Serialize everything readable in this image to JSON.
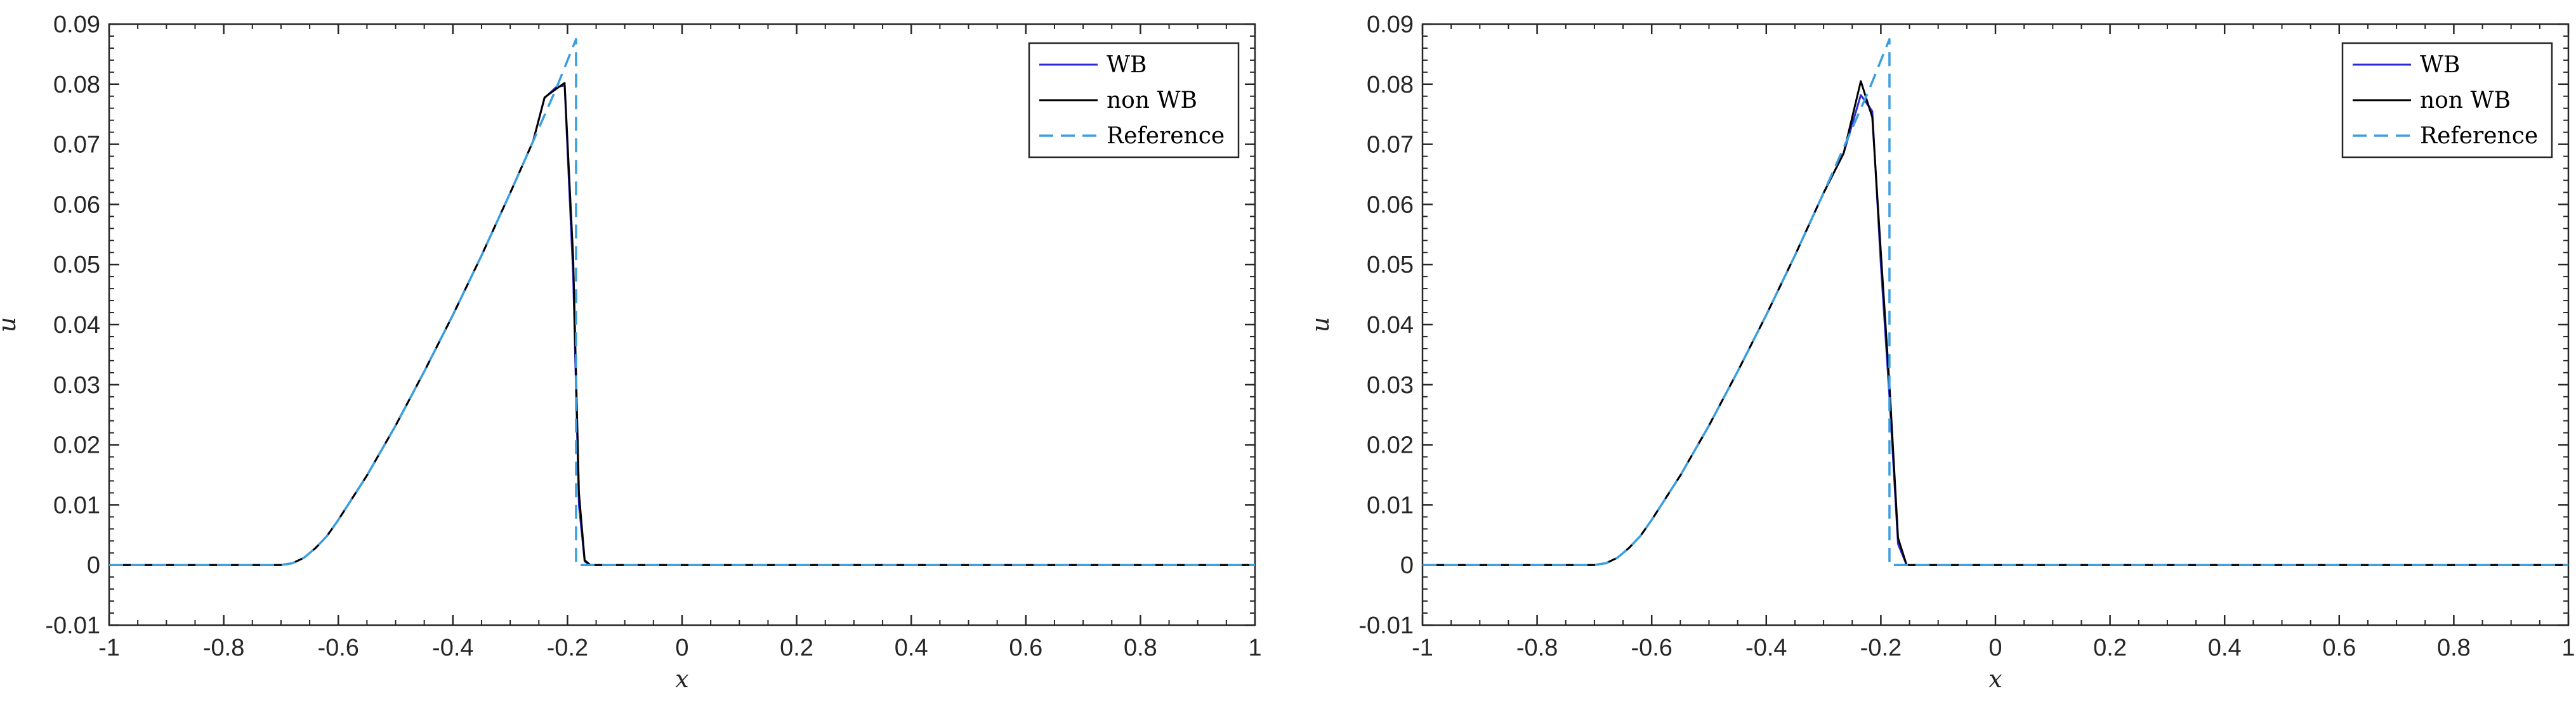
{
  "colors": {
    "wb": "#2b2bd6",
    "non_wb": "#000000",
    "reference": "#3a9ee0",
    "axis": "#262626"
  },
  "chart_data": [
    {
      "type": "line",
      "title": "",
      "xlabel": "x",
      "ylabel": "u",
      "xlim": [
        -1,
        1
      ],
      "ylim": [
        -0.01,
        0.09
      ],
      "xticks": [
        -1,
        -0.8,
        -0.6,
        -0.4,
        -0.2,
        0,
        0.2,
        0.4,
        0.6,
        0.8,
        1
      ],
      "xtick_labels": [
        "-1",
        "-0.8",
        "-0.6",
        "-0.4",
        "-0.2",
        "0",
        "0.2",
        "0.4",
        "0.6",
        "0.8",
        "1"
      ],
      "yticks": [
        -0.01,
        0,
        0.01,
        0.02,
        0.03,
        0.04,
        0.05,
        0.06,
        0.07,
        0.08,
        0.09
      ],
      "ytick_labels": [
        "-0.01",
        "0",
        "0.01",
        "0.02",
        "0.03",
        "0.04",
        "0.05",
        "0.06",
        "0.07",
        "0.08",
        "0.09"
      ],
      "grid": false,
      "legend_position": "top-right",
      "series": [
        {
          "name": "WB",
          "style": "solid",
          "x": [
            -1,
            -0.7,
            -0.68,
            -0.66,
            -0.64,
            -0.62,
            -0.6,
            -0.55,
            -0.5,
            -0.45,
            -0.4,
            -0.35,
            -0.3,
            -0.26,
            -0.24,
            -0.22,
            -0.205,
            -0.19,
            -0.18,
            -0.17,
            -0.16,
            1
          ],
          "y": [
            0,
            0,
            0.0003,
            0.0012,
            0.0028,
            0.0048,
            0.0075,
            0.0149,
            0.0232,
            0.0322,
            0.0416,
            0.0515,
            0.0619,
            0.0705,
            0.0777,
            0.0795,
            0.0798,
            0.048,
            0.01,
            0.0006,
            0,
            0
          ]
        },
        {
          "name": "non WB",
          "style": "solid",
          "x": [
            -1,
            -0.7,
            -0.68,
            -0.66,
            -0.64,
            -0.62,
            -0.6,
            -0.55,
            -0.5,
            -0.45,
            -0.4,
            -0.35,
            -0.3,
            -0.26,
            -0.24,
            -0.22,
            -0.205,
            -0.19,
            -0.18,
            -0.17,
            -0.16,
            1
          ],
          "y": [
            0,
            0,
            0.0003,
            0.0012,
            0.0028,
            0.0048,
            0.0075,
            0.0149,
            0.0232,
            0.0322,
            0.0416,
            0.0515,
            0.0619,
            0.0705,
            0.0778,
            0.0792,
            0.0802,
            0.051,
            0.012,
            0.0008,
            0,
            0
          ]
        },
        {
          "name": "Reference",
          "style": "dashed",
          "x": [
            -1,
            -0.7,
            -0.68,
            -0.66,
            -0.64,
            -0.62,
            -0.6,
            -0.55,
            -0.5,
            -0.45,
            -0.4,
            -0.35,
            -0.3,
            -0.26,
            -0.22,
            -0.185,
            -0.185,
            1
          ],
          "y": [
            0,
            0,
            0.0003,
            0.0012,
            0.0028,
            0.0048,
            0.0075,
            0.0149,
            0.0232,
            0.0322,
            0.0416,
            0.0515,
            0.0619,
            0.0705,
            0.0792,
            0.0875,
            0,
            0
          ]
        }
      ]
    },
    {
      "type": "line",
      "title": "",
      "xlabel": "x",
      "ylabel": "u",
      "xlim": [
        -1,
        1
      ],
      "ylim": [
        -0.01,
        0.09
      ],
      "xticks": [
        -1,
        -0.8,
        -0.6,
        -0.4,
        -0.2,
        0,
        0.2,
        0.4,
        0.6,
        0.8,
        1
      ],
      "xtick_labels": [
        "-1",
        "-0.8",
        "-0.6",
        "-0.4",
        "-0.2",
        "0",
        "0.2",
        "0.4",
        "0.6",
        "0.8",
        "1"
      ],
      "yticks": [
        -0.01,
        0,
        0.01,
        0.02,
        0.03,
        0.04,
        0.05,
        0.06,
        0.07,
        0.08,
        0.09
      ],
      "ytick_labels": [
        "-0.01",
        "0",
        "0.01",
        "0.02",
        "0.03",
        "0.04",
        "0.05",
        "0.06",
        "0.07",
        "0.08",
        "0.09"
      ],
      "grid": false,
      "legend_position": "top-right",
      "series": [
        {
          "name": "WB",
          "style": "solid",
          "x": [
            -1,
            -0.7,
            -0.68,
            -0.66,
            -0.64,
            -0.62,
            -0.6,
            -0.55,
            -0.5,
            -0.45,
            -0.4,
            -0.35,
            -0.3,
            -0.265,
            -0.235,
            -0.215,
            -0.2,
            -0.185,
            -0.17,
            -0.155,
            1
          ],
          "y": [
            0,
            0,
            0.0003,
            0.0012,
            0.0028,
            0.0048,
            0.0075,
            0.0149,
            0.0232,
            0.0322,
            0.0416,
            0.0515,
            0.0619,
            0.0685,
            0.0782,
            0.0755,
            0.05,
            0.028,
            0.0035,
            0,
            0
          ]
        },
        {
          "name": "non WB",
          "style": "solid",
          "x": [
            -1,
            -0.7,
            -0.68,
            -0.66,
            -0.64,
            -0.62,
            -0.6,
            -0.55,
            -0.5,
            -0.45,
            -0.4,
            -0.35,
            -0.3,
            -0.265,
            -0.235,
            -0.215,
            -0.2,
            -0.185,
            -0.17,
            -0.155,
            1
          ],
          "y": [
            0,
            0,
            0.0003,
            0.0012,
            0.0028,
            0.0048,
            0.0075,
            0.0149,
            0.0232,
            0.0322,
            0.0416,
            0.0515,
            0.0619,
            0.0685,
            0.0805,
            0.0745,
            0.052,
            0.03,
            0.0045,
            0,
            0
          ]
        },
        {
          "name": "Reference",
          "style": "dashed",
          "x": [
            -1,
            -0.7,
            -0.68,
            -0.66,
            -0.64,
            -0.62,
            -0.6,
            -0.55,
            -0.5,
            -0.45,
            -0.4,
            -0.35,
            -0.3,
            -0.26,
            -0.22,
            -0.185,
            -0.185,
            1
          ],
          "y": [
            0,
            0,
            0.0003,
            0.0012,
            0.0028,
            0.0048,
            0.0075,
            0.0149,
            0.0232,
            0.0322,
            0.0416,
            0.0515,
            0.0619,
            0.0705,
            0.0792,
            0.0875,
            0,
            0
          ]
        }
      ]
    }
  ]
}
